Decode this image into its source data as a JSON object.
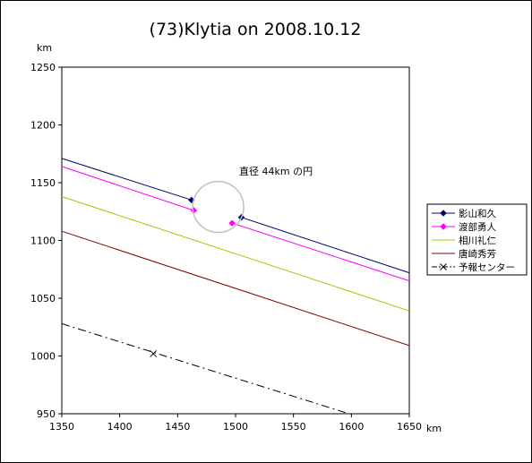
{
  "chart_data": {
    "type": "line",
    "title": "(73)Klytia on 2008.10.12",
    "xlabel": "km",
    "ylabel": "km",
    "xlim": [
      1350,
      1650
    ],
    "ylim": [
      950,
      1250
    ],
    "xticks": [
      "1350",
      "1400",
      "1450",
      "1500",
      "1550",
      "1600",
      "1650"
    ],
    "yticks": [
      "950",
      "1000",
      "1050",
      "1100",
      "1150",
      "1200",
      "1250"
    ],
    "grid": false,
    "legend_position": "right",
    "annotation": {
      "text": "直径 44km の円",
      "circle_center": [
        1485,
        1129
      ],
      "circle_diameter": 44
    },
    "series": [
      {
        "name": "影山和久",
        "color": "#000066",
        "style": "solid",
        "marker": "diamond",
        "segments": [
          [
            [
              1350,
              1171
            ],
            [
              1462,
              1135
            ]
          ],
          [
            [
              1505,
              1120
            ],
            [
              1650,
              1072
            ]
          ]
        ],
        "markers": [
          [
            1462,
            1135
          ],
          [
            1505,
            1120
          ]
        ]
      },
      {
        "name": "渡部勇人",
        "color": "#ff00ff",
        "style": "solid",
        "marker": "diamond",
        "segments": [
          [
            [
              1350,
              1164
            ],
            [
              1464,
              1126
            ]
          ],
          [
            [
              1497,
              1115
            ],
            [
              1650,
              1065
            ]
          ]
        ],
        "markers": [
          [
            1464,
            1126
          ],
          [
            1497,
            1115
          ]
        ]
      },
      {
        "name": "相川礼仁",
        "color": "#99cc00",
        "style": "solid",
        "marker": "none",
        "segments": [
          [
            [
              1350,
              1138
            ],
            [
              1650,
              1039
            ]
          ]
        ],
        "markers": []
      },
      {
        "name": "唐崎秀芳",
        "color": "#800000",
        "style": "solid",
        "marker": "none",
        "segments": [
          [
            [
              1350,
              1108
            ],
            [
              1650,
              1009
            ]
          ]
        ],
        "markers": []
      },
      {
        "name": "予報センター",
        "color": "#000000",
        "style": "dashdot",
        "marker": "x",
        "segments": [
          [
            [
              1350,
              1028
            ],
            [
              1598,
              950
            ]
          ]
        ],
        "markers": [
          [
            1429,
            1002
          ]
        ]
      }
    ]
  }
}
